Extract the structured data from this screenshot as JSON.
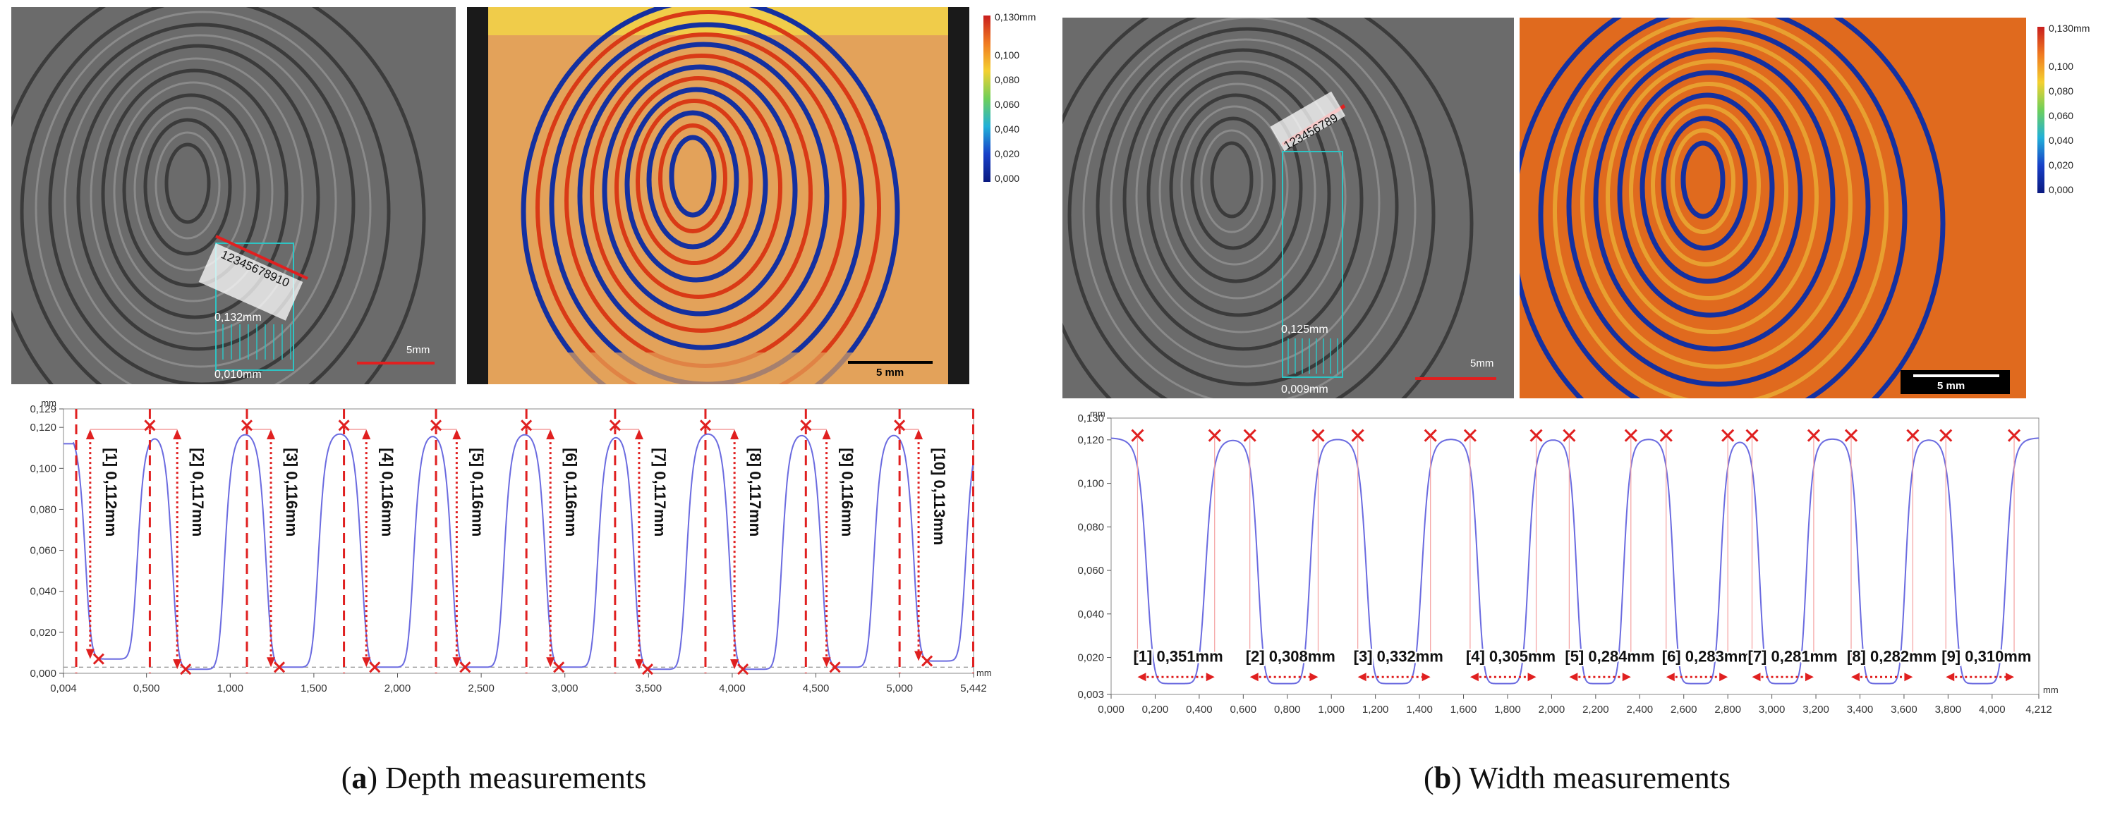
{
  "figure": {
    "panel_a": {
      "caption_letter": "a",
      "caption_text": "Depth measurements",
      "gray_image": {
        "scale_label": "5mm",
        "top_value": "0,132mm",
        "bottom_value": "0,010mm",
        "marker_numbers": "12345678910"
      },
      "heat_image": {
        "scale_label": "5 mm"
      },
      "colorbar": {
        "labels": [
          "0,130mm",
          "0,100",
          "0,080",
          "0,060",
          "0,040",
          "0,020",
          "0,000"
        ]
      }
    },
    "panel_b": {
      "caption_letter": "b",
      "caption_text": "Width measurements",
      "gray_image": {
        "scale_label": "5mm",
        "top_value": "0,125mm",
        "bottom_value": "0,009mm",
        "marker_numbers": "123456789"
      },
      "heat_image": {
        "scale_label": "5 mm"
      },
      "colorbar": {
        "labels": [
          "0,130mm",
          "0,100",
          "0,080",
          "0,060",
          "0,040",
          "0,020",
          "0,000"
        ]
      }
    }
  },
  "chart_data": [
    {
      "type": "line",
      "title": "Depth measurements",
      "xlabel": "mm",
      "ylabel": "mm",
      "xlim": [
        0.004,
        5.442
      ],
      "ylim": [
        0.0,
        0.129
      ],
      "x_ticks": [
        "0,004",
        "0,500",
        "1,000",
        "1,500",
        "2,000",
        "2,500",
        "3,000",
        "3,500",
        "4,000",
        "4,500",
        "5,000",
        "5,442"
      ],
      "y_ticks": [
        "0,000",
        "0,020",
        "0,040",
        "0,060",
        "0,080",
        "0,100",
        "0,120",
        "0,129"
      ],
      "ridge_tops_x": [
        0.52,
        1.1,
        1.68,
        2.23,
        2.77,
        3.3,
        3.84,
        4.44,
        5.0
      ],
      "valley_centers_x": [
        0.29,
        0.81,
        1.37,
        1.94,
        2.48,
        3.04,
        3.57,
        4.14,
        4.69,
        5.24
      ],
      "measurements": [
        {
          "label": "[1] 0,112mm",
          "x": 0.29,
          "value": 0.112
        },
        {
          "label": "[2] 0,117mm",
          "x": 0.81,
          "value": 0.117
        },
        {
          "label": "[3] 0,116mm",
          "x": 1.37,
          "value": 0.116
        },
        {
          "label": "[4] 0,116mm",
          "x": 1.94,
          "value": 0.116
        },
        {
          "label": "[5] 0,116mm",
          "x": 2.48,
          "value": 0.116
        },
        {
          "label": "[6] 0,116mm",
          "x": 3.04,
          "value": 0.116
        },
        {
          "label": "[7] 0,117mm",
          "x": 3.57,
          "value": 0.117
        },
        {
          "label": "[8] 0,117mm",
          "x": 4.14,
          "value": 0.117
        },
        {
          "label": "[9] 0,116mm",
          "x": 4.69,
          "value": 0.116
        },
        {
          "label": "[10] 0,113mm",
          "x": 5.24,
          "value": 0.113
        }
      ]
    },
    {
      "type": "line",
      "title": "Width measurements",
      "xlabel": "mm",
      "ylabel": "mm",
      "xlim": [
        0.0,
        4.212
      ],
      "ylim": [
        0.003,
        0.13
      ],
      "x_ticks": [
        "0,000",
        "0,200",
        "0,400",
        "0,600",
        "0,800",
        "1,000",
        "1,200",
        "1,400",
        "1,600",
        "1,800",
        "2,000",
        "2,200",
        "2,400",
        "2,600",
        "2,800",
        "3,000",
        "3,200",
        "3,400",
        "3,600",
        "3,800",
        "4,000",
        "4,212"
      ],
      "y_ticks": [
        "0,003",
        "0,020",
        "0,040",
        "0,060",
        "0,080",
        "0,100",
        "0,120",
        "0,130"
      ],
      "measurements": [
        {
          "label": "[1] 0,351mm",
          "x_start": 0.12,
          "x_end": 0.47,
          "value": 0.351
        },
        {
          "label": "[2] 0,308mm",
          "x_start": 0.63,
          "x_end": 0.94,
          "value": 0.308
        },
        {
          "label": "[3] 0,332mm",
          "x_start": 1.12,
          "x_end": 1.45,
          "value": 0.332
        },
        {
          "label": "[4] 0,305mm",
          "x_start": 1.63,
          "x_end": 1.93,
          "value": 0.305
        },
        {
          "label": "[5] 0,284mm",
          "x_start": 2.08,
          "x_end": 2.36,
          "value": 0.284
        },
        {
          "label": "[6] 0,283mm",
          "x_start": 2.52,
          "x_end": 2.8,
          "value": 0.283
        },
        {
          "label": "[7] 0,281mm",
          "x_start": 2.91,
          "x_end": 3.19,
          "value": 0.281
        },
        {
          "label": "[8] 0,282mm",
          "x_start": 3.36,
          "x_end": 3.64,
          "value": 0.282
        },
        {
          "label": "[9] 0,310mm",
          "x_start": 3.79,
          "x_end": 4.1,
          "value": 0.31
        }
      ]
    }
  ]
}
